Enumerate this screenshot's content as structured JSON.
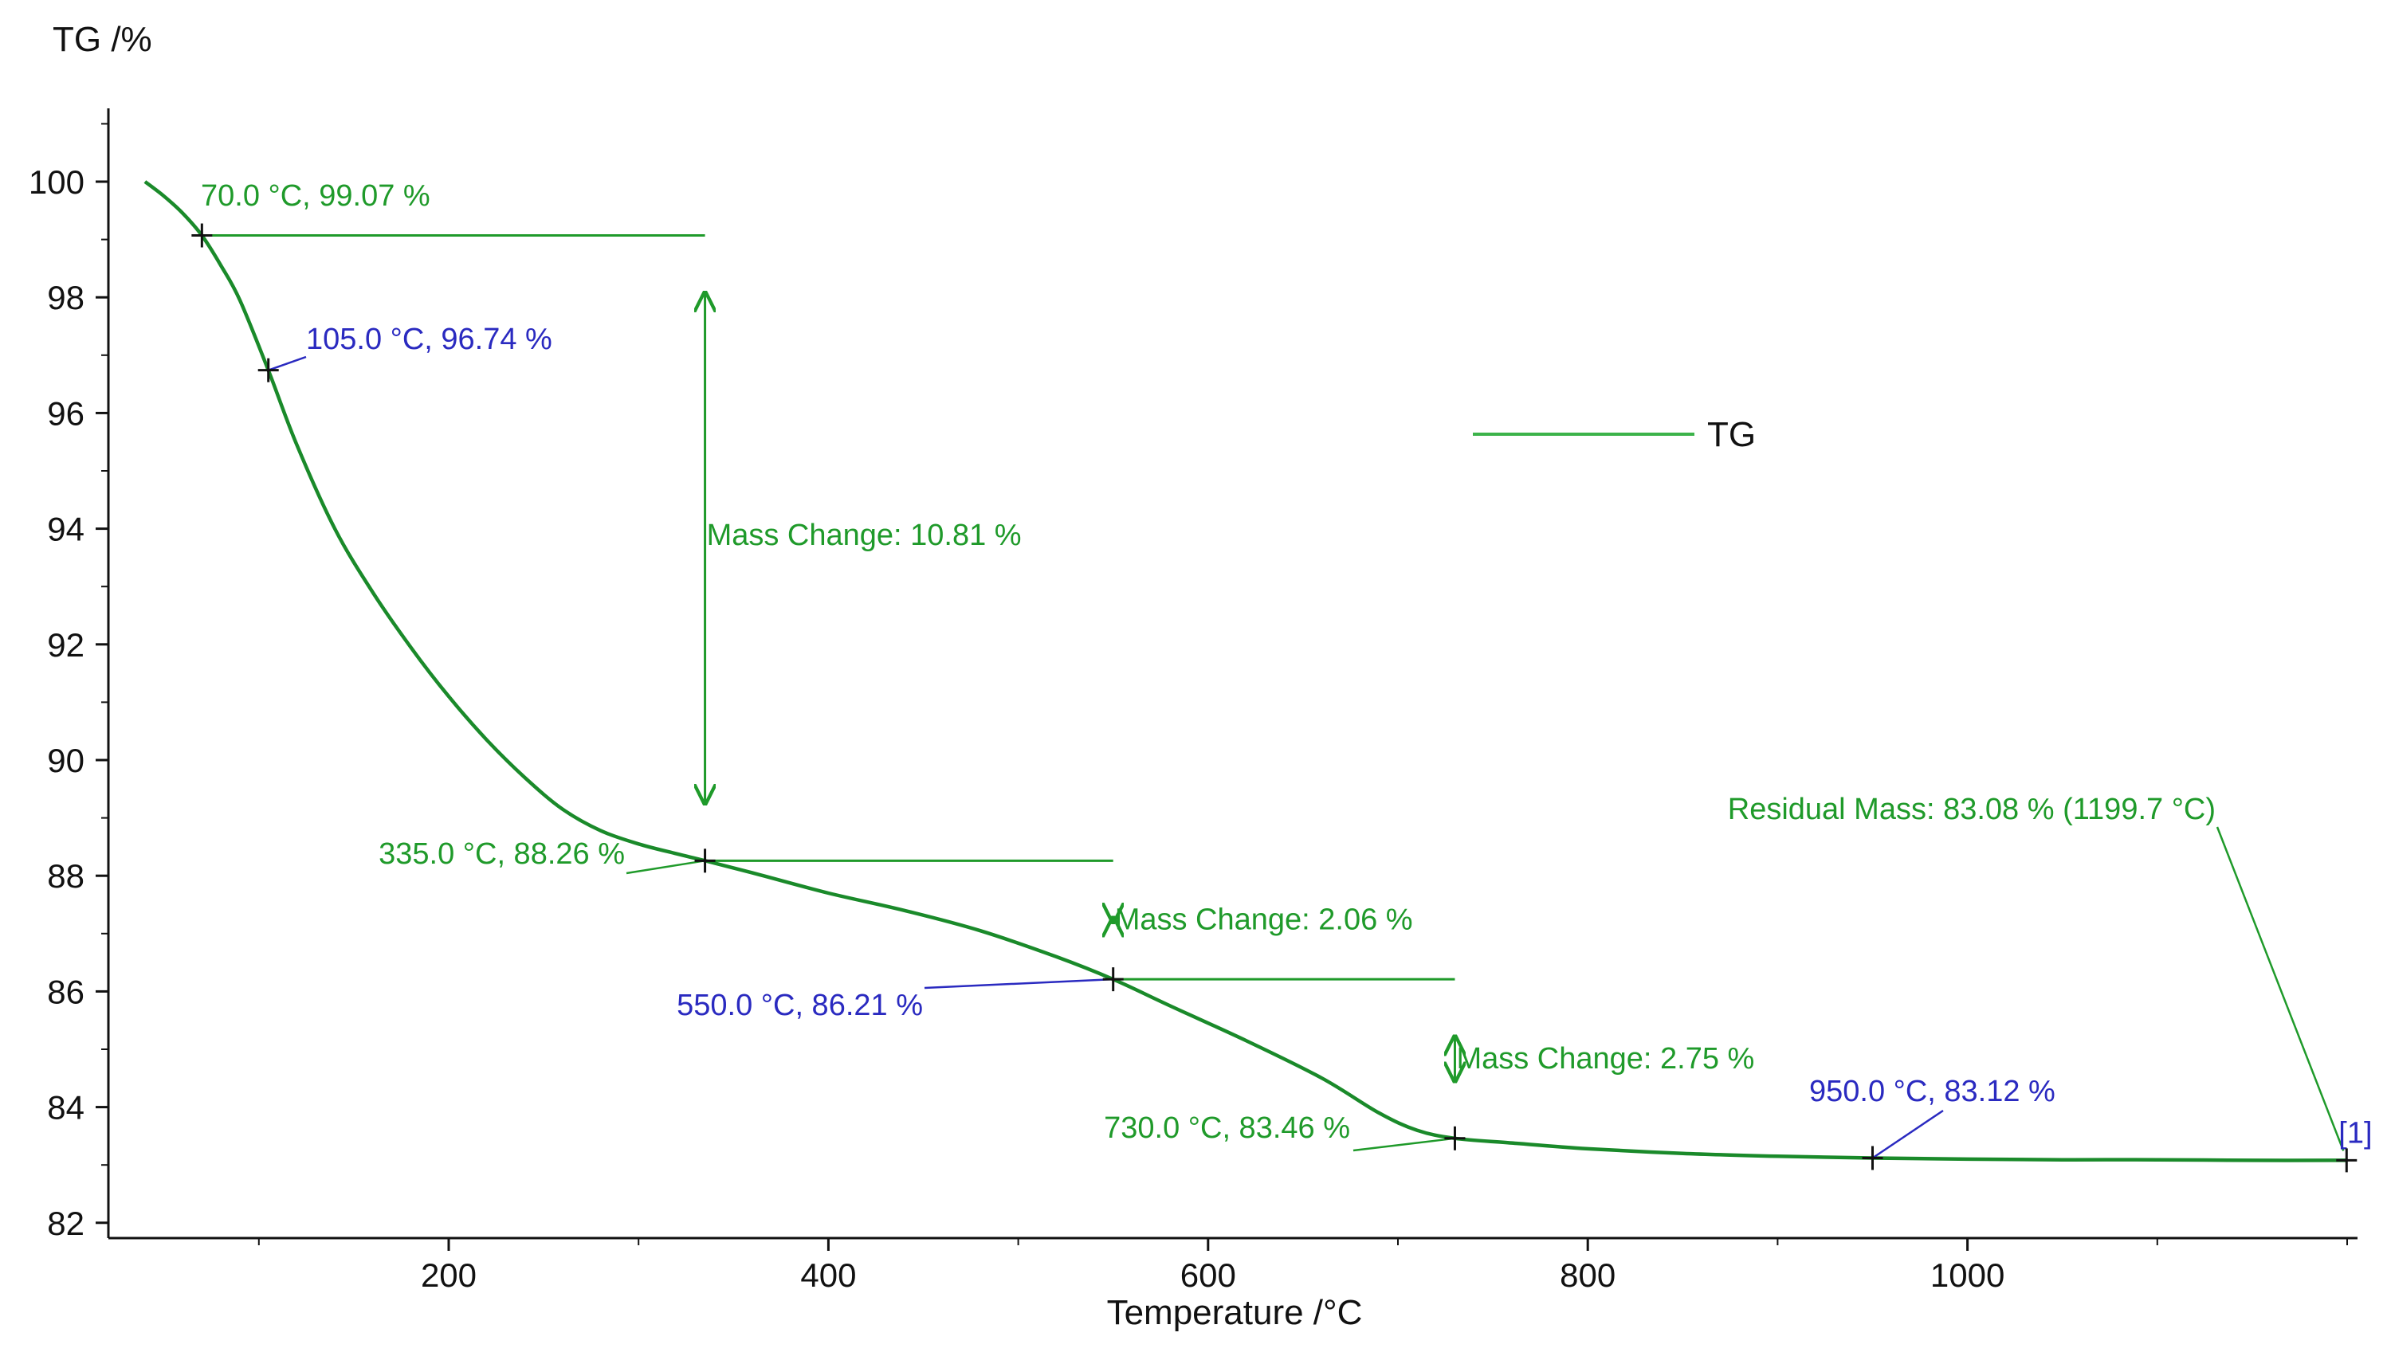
{
  "colors": {
    "curve": "#1a8a2a",
    "annotation_green": "#1f9a2a",
    "annotation_blue": "#2a2ac0",
    "legend_line": "#3cb34a",
    "axis": "#111111",
    "marker": "#111111"
  },
  "chart_data": {
    "type": "line",
    "title": "",
    "xlabel": "Temperature /°C",
    "ylabel": "TG /%",
    "xlim": [
      30,
      1210
    ],
    "ylim": [
      82,
      101.5
    ],
    "x_ticks": [
      200,
      400,
      600,
      800,
      1000
    ],
    "x_tick_labels": [
      "200",
      "400",
      "600",
      "800",
      "1000"
    ],
    "y_ticks": [
      82,
      84,
      86,
      88,
      90,
      92,
      94,
      96,
      98,
      100
    ],
    "y_tick_labels": [
      "82",
      "84",
      "86",
      "88",
      "90",
      "92",
      "94",
      "96",
      "98",
      "100"
    ],
    "legend": {
      "label": "TG",
      "position": "upper-right"
    },
    "series": [
      {
        "name": "TG",
        "x": [
          40,
          50,
          60,
          70,
          80,
          90,
          105,
          120,
          140,
          160,
          180,
          200,
          220,
          240,
          260,
          280,
          300,
          320,
          335,
          360,
          400,
          440,
          480,
          520,
          550,
          580,
          620,
          660,
          690,
          710,
          730,
          760,
          800,
          850,
          900,
          950,
          1000,
          1050,
          1100,
          1150,
          1200
        ],
        "values": [
          100.0,
          99.75,
          99.45,
          99.07,
          98.55,
          97.95,
          96.74,
          95.45,
          94.0,
          92.9,
          91.95,
          91.1,
          90.35,
          89.7,
          89.15,
          88.78,
          88.55,
          88.38,
          88.26,
          88.05,
          87.7,
          87.4,
          87.05,
          86.6,
          86.21,
          85.75,
          85.15,
          84.5,
          83.9,
          83.6,
          83.46,
          83.38,
          83.28,
          83.2,
          83.15,
          83.12,
          83.1,
          83.09,
          83.09,
          83.08,
          83.08
        ]
      }
    ],
    "markers": [
      {
        "name": "point-70",
        "x": 70.0,
        "y": 99.07,
        "label": "70.0 °C, 99.07 %",
        "color": "green"
      },
      {
        "name": "point-105",
        "x": 105.0,
        "y": 96.74,
        "label": "105.0 °C, 96.74 %",
        "color": "blue"
      },
      {
        "name": "point-335",
        "x": 335.0,
        "y": 88.26,
        "label": "335.0 °C, 88.26 %",
        "color": "green"
      },
      {
        "name": "point-550",
        "x": 550.0,
        "y": 86.21,
        "label": "550.0 °C, 86.21 %",
        "color": "blue"
      },
      {
        "name": "point-730",
        "x": 730.0,
        "y": 83.46,
        "label": "730.0 °C, 83.46 %",
        "color": "green"
      },
      {
        "name": "point-950",
        "x": 950.0,
        "y": 83.12,
        "label": "950.0 °C, 83.12 %",
        "color": "blue"
      }
    ],
    "mass_changes": [
      {
        "name": "mass-change-1",
        "from_x": 70.0,
        "from_y": 99.07,
        "to_x": 335.0,
        "to_y": 88.26,
        "label": "Mass Change:  10.81 %"
      },
      {
        "name": "mass-change-2",
        "from_x": 335.0,
        "from_y": 88.26,
        "to_x": 550.0,
        "to_y": 86.21,
        "label": "Mass Change:  2.06 %"
      },
      {
        "name": "mass-change-3",
        "from_x": 550.0,
        "from_y": 86.21,
        "to_x": 730.0,
        "to_y": 83.46,
        "label": "Mass Change:  2.75 %"
      }
    ],
    "residual": {
      "x": 1199.7,
      "y": 83.08,
      "label": "Residual Mass: 83.08 % (1199.7 °C)",
      "tag": "[1]"
    }
  }
}
